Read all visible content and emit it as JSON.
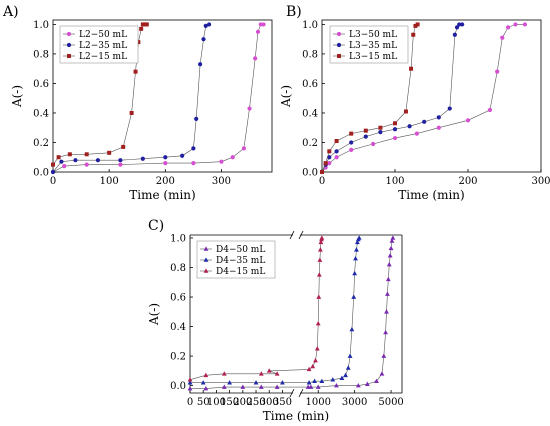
{
  "chart_data": [
    {
      "panel": "A)",
      "type": "line",
      "xlabel": "Time (min)",
      "ylabel": "A(-)",
      "xlim": [
        0,
        390
      ],
      "ylim": [
        0,
        1.03
      ],
      "xticks": [
        "0",
        "100",
        "200",
        "300"
      ],
      "yticks": [
        "0.0",
        "0.2",
        "0.4",
        "0.6",
        "0.8",
        "1.0"
      ],
      "legend_position": "top-left",
      "series": [
        {
          "name": "L2−50 mL",
          "color": "#d64fd0",
          "marker": "circle",
          "x": [
            0,
            20,
            60,
            120,
            200,
            250,
            300,
            320,
            340,
            350,
            360,
            365,
            370,
            375
          ],
          "y": [
            0,
            0.04,
            0.05,
            0.05,
            0.06,
            0.06,
            0.07,
            0.1,
            0.16,
            0.43,
            0.77,
            0.95,
            1.0,
            1.0
          ]
        },
        {
          "name": "L2−35 mL",
          "color": "#1f1fa0",
          "marker": "circle",
          "x": [
            0,
            15,
            40,
            80,
            120,
            160,
            200,
            230,
            250,
            255,
            262,
            268,
            272,
            278
          ],
          "y": [
            0,
            0.07,
            0.08,
            0.08,
            0.08,
            0.09,
            0.1,
            0.11,
            0.16,
            0.36,
            0.73,
            0.9,
            0.99,
            1.0
          ]
        },
        {
          "name": "L2−15 mL",
          "color": "#a01f1f",
          "marker": "square",
          "x": [
            0,
            10,
            30,
            60,
            100,
            125,
            140,
            147,
            152,
            157,
            160,
            163,
            167
          ],
          "y": [
            0.05,
            0.1,
            0.12,
            0.12,
            0.13,
            0.17,
            0.4,
            0.68,
            0.88,
            0.97,
            1.0,
            1.0,
            1.0
          ]
        }
      ]
    },
    {
      "panel": "B)",
      "type": "line",
      "xlabel": "Time (min)",
      "ylabel": "A(-)",
      "xlim": [
        0,
        300
      ],
      "ylim": [
        0,
        1.03
      ],
      "xticks": [
        "0",
        "100",
        "200",
        "300"
      ],
      "yticks": [
        "0.0",
        "0.2",
        "0.4",
        "0.6",
        "0.8",
        "1.0"
      ],
      "legend_position": "top-left",
      "series": [
        {
          "name": "L3−50 mL",
          "color": "#d64fd0",
          "marker": "circle",
          "x": [
            0,
            5,
            10,
            20,
            40,
            70,
            100,
            130,
            160,
            200,
            230,
            240,
            247,
            255,
            265,
            278
          ],
          "y": [
            0,
            0.03,
            0.06,
            0.1,
            0.15,
            0.19,
            0.23,
            0.26,
            0.3,
            0.35,
            0.42,
            0.68,
            0.91,
            0.98,
            1.0,
            1.0
          ]
        },
        {
          "name": "L3−35 mL",
          "color": "#1f1fa0",
          "marker": "circle",
          "x": [
            0,
            5,
            10,
            20,
            40,
            60,
            80,
            100,
            120,
            140,
            160,
            175,
            182,
            185,
            188,
            192
          ],
          "y": [
            0,
            0.05,
            0.1,
            0.14,
            0.2,
            0.24,
            0.27,
            0.29,
            0.31,
            0.34,
            0.37,
            0.43,
            0.93,
            0.98,
            1.0,
            1.0
          ]
        },
        {
          "name": "L3−15 mL",
          "color": "#a01f1f",
          "marker": "square",
          "x": [
            0,
            5,
            10,
            20,
            40,
            60,
            80,
            100,
            115,
            122,
            125,
            128,
            131
          ],
          "y": [
            0,
            0.06,
            0.14,
            0.21,
            0.26,
            0.28,
            0.3,
            0.33,
            0.41,
            0.7,
            0.93,
            0.99,
            1.0
          ]
        }
      ]
    },
    {
      "panel": "C)",
      "type": "line",
      "xlabel": "Time (min)",
      "ylabel": "A(-)",
      "axis_break": true,
      "xlim_left": [
        0,
        390
      ],
      "xlim_right": [
        0,
        5600
      ],
      "ylim": [
        -0.05,
        1.02
      ],
      "xticks_left": [
        "0",
        "50",
        "100",
        "150",
        "200",
        "250",
        "300",
        "350"
      ],
      "xticks_right": [
        "1000",
        "3000",
        "5000"
      ],
      "yticks": [
        "0.0",
        "0.2",
        "0.4",
        "0.6",
        "0.8",
        "1.0"
      ],
      "legend_position": "top-left",
      "series": [
        {
          "name": "D4−50 mL",
          "color": "#7a2ab0",
          "marker": "triangle",
          "x": [
            0,
            60,
            130,
            200,
            270,
            330,
            450,
            600,
            1000,
            2000,
            3200,
            3700,
            4200,
            4500,
            4600,
            4700,
            4750,
            4800,
            4850,
            4900,
            4950,
            5000,
            5050,
            5100
          ],
          "y": [
            -0.02,
            -0.02,
            -0.01,
            -0.01,
            -0.01,
            -0.01,
            -0.01,
            -0.01,
            -0.01,
            0.0,
            0.0,
            0.01,
            0.03,
            0.08,
            0.2,
            0.36,
            0.5,
            0.62,
            0.72,
            0.82,
            0.88,
            0.93,
            0.98,
            1.0
          ]
        },
        {
          "name": "D4−35 mL",
          "color": "#1f2aa8",
          "marker": "triangle",
          "x": [
            0,
            50,
            150,
            250,
            350,
            500,
            800,
            1200,
            1800,
            2300,
            2500,
            2650,
            2750,
            2850,
            2950,
            3000,
            3050,
            3100,
            3150,
            3200,
            3250
          ],
          "y": [
            0.02,
            0.02,
            0.02,
            0.02,
            0.02,
            0.02,
            0.03,
            0.03,
            0.04,
            0.05,
            0.07,
            0.12,
            0.2,
            0.38,
            0.6,
            0.76,
            0.86,
            0.92,
            0.97,
            0.99,
            1.0
          ]
        },
        {
          "name": "D4−15 mL",
          "color": "#b02050",
          "marker": "triangle",
          "x": [
            0,
            60,
            130,
            270,
            330,
            300,
            500,
            700,
            850,
            950,
            1000,
            1030,
            1060,
            1090,
            1120,
            1150,
            1180,
            1200
          ],
          "y": [
            0.04,
            0.07,
            0.08,
            0.08,
            0.08,
            0.1,
            0.11,
            0.13,
            0.17,
            0.25,
            0.42,
            0.6,
            0.75,
            0.85,
            0.92,
            0.97,
            0.99,
            1.0
          ]
        }
      ]
    }
  ]
}
